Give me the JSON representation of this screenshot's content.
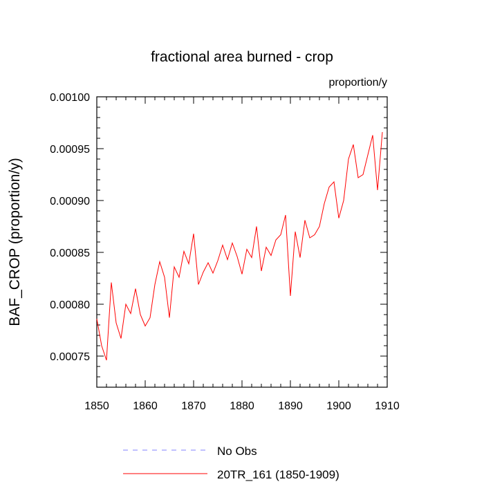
{
  "chart_data": {
    "type": "line",
    "title": "fractional area burned - crop",
    "units": "proportion/y",
    "xlabel": "",
    "ylabel": "BAF_CROP  (proportion/y)",
    "xlim": [
      1850,
      1910
    ],
    "ylim": [
      0.00072,
      0.001
    ],
    "xticks": [
      1850,
      1860,
      1870,
      1880,
      1890,
      1900,
      1910
    ],
    "xtick_labels": [
      "1850",
      "1860",
      "1870",
      "1880",
      "1890",
      "1900",
      "1910"
    ],
    "yticks": [
      0.00075,
      0.0008,
      0.00085,
      0.0009,
      0.00095,
      0.001
    ],
    "ytick_labels": [
      "0.00075",
      "0.00080",
      "0.00085",
      "0.00090",
      "0.00095",
      "0.00100"
    ],
    "grid": false,
    "legend_position": "bottom-center",
    "series": [
      {
        "name": "No Obs",
        "color": "#8080ff",
        "style": "dashed",
        "values": []
      },
      {
        "name": "20TR_161 (1850-1909)",
        "color": "#ff0000",
        "style": "solid",
        "x": [
          1850,
          1851,
          1852,
          1853,
          1854,
          1855,
          1856,
          1857,
          1858,
          1859,
          1860,
          1861,
          1862,
          1863,
          1864,
          1865,
          1866,
          1867,
          1868,
          1869,
          1870,
          1871,
          1872,
          1873,
          1874,
          1875,
          1876,
          1877,
          1878,
          1879,
          1880,
          1881,
          1882,
          1883,
          1884,
          1885,
          1886,
          1887,
          1888,
          1889,
          1890,
          1891,
          1892,
          1893,
          1894,
          1895,
          1896,
          1897,
          1898,
          1899,
          1900,
          1901,
          1902,
          1903,
          1904,
          1905,
          1906,
          1907,
          1908,
          1909
        ],
        "values": [
          0.000786,
          0.00076,
          0.000746,
          0.000821,
          0.000782,
          0.000767,
          0.0008,
          0.000791,
          0.000815,
          0.00079,
          0.000779,
          0.000787,
          0.000819,
          0.000841,
          0.000826,
          0.000787,
          0.000836,
          0.000826,
          0.000851,
          0.000839,
          0.000868,
          0.000819,
          0.000831,
          0.00084,
          0.00083,
          0.000842,
          0.000857,
          0.000843,
          0.000859,
          0.000846,
          0.000829,
          0.000853,
          0.000845,
          0.000875,
          0.000832,
          0.000855,
          0.000847,
          0.000862,
          0.000867,
          0.000886,
          0.000808,
          0.00087,
          0.000845,
          0.000881,
          0.000864,
          0.000867,
          0.000875,
          0.000897,
          0.000913,
          0.000918,
          0.000883,
          0.0009,
          0.00094,
          0.000954,
          0.000922,
          0.000925,
          0.000944,
          0.000963,
          0.00091,
          0.000966
        ]
      }
    ]
  }
}
